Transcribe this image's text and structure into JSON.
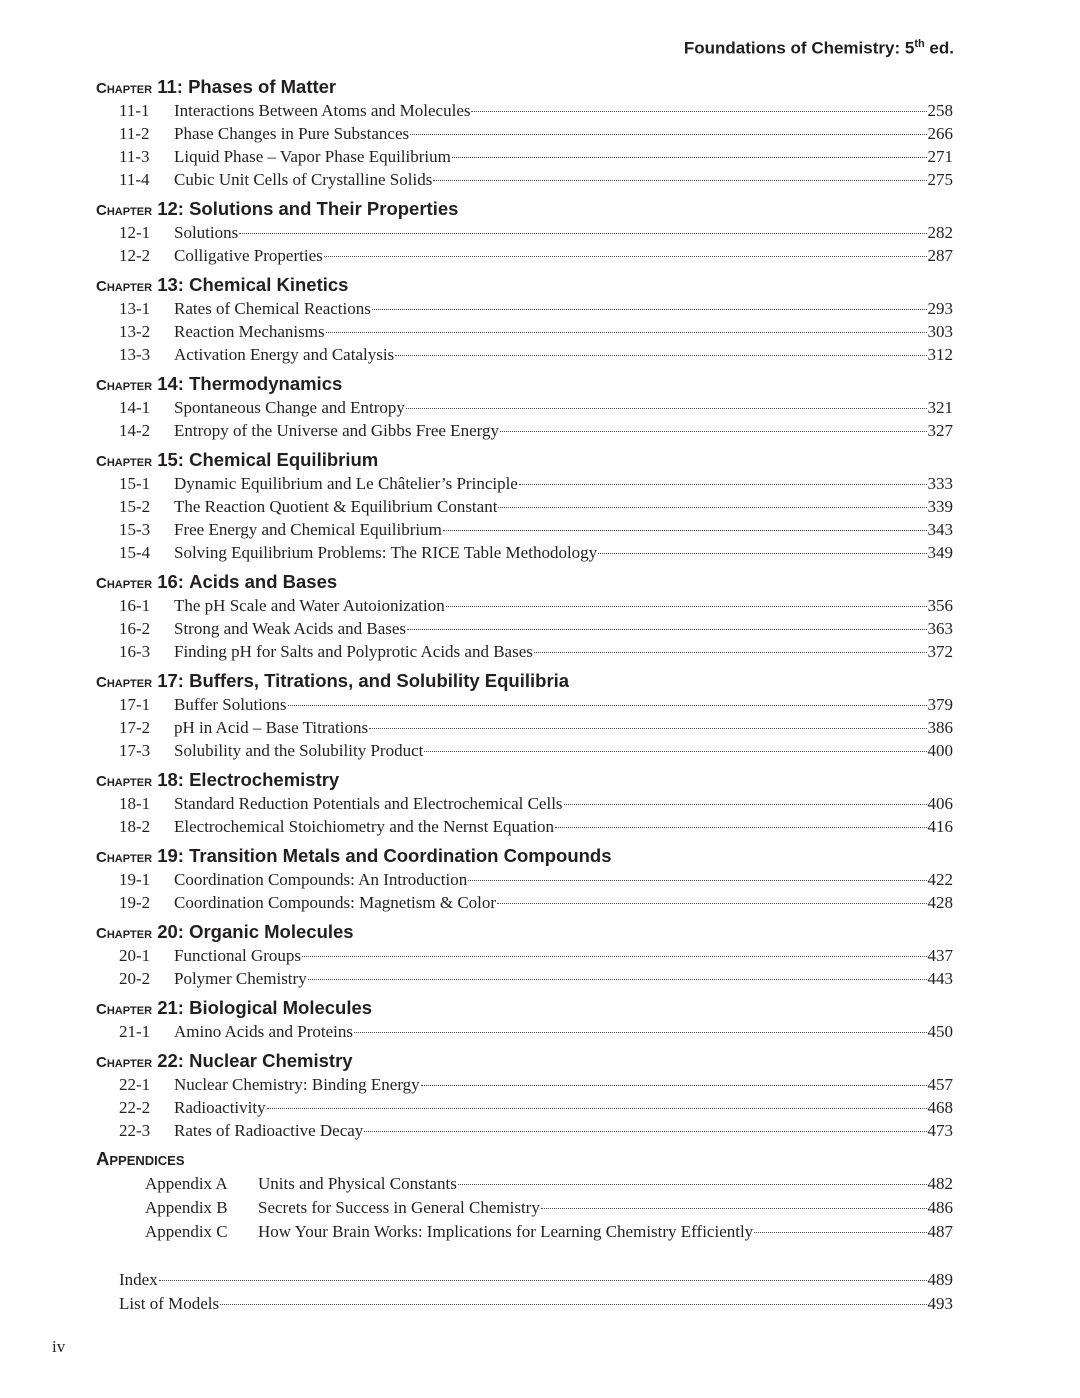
{
  "header": {
    "title_pre": "Foundations of Chemistry: 5",
    "title_sup": "th",
    "title_post": " ed."
  },
  "chapter_label": "Chapter",
  "chapters": [
    {
      "num": "11",
      "title": "Phases of Matter",
      "sections": [
        [
          "11-1",
          "Interactions Between Atoms and Molecules",
          "258"
        ],
        [
          "11-2",
          "Phase Changes in Pure Substances",
          "266"
        ],
        [
          "11-3",
          "Liquid Phase – Vapor Phase Equilibrium",
          "271"
        ],
        [
          "11-4",
          "Cubic Unit Cells of Crystalline Solids",
          "275"
        ]
      ]
    },
    {
      "num": "12",
      "title": "Solutions and Their Properties",
      "sections": [
        [
          "12-1",
          "Solutions",
          "282"
        ],
        [
          "12-2",
          "Colligative Properties",
          "287"
        ]
      ]
    },
    {
      "num": "13",
      "title": "Chemical Kinetics",
      "sections": [
        [
          "13-1",
          "Rates of Chemical Reactions",
          "293"
        ],
        [
          "13-2",
          "Reaction Mechanisms",
          "303"
        ],
        [
          "13-3",
          "Activation Energy and Catalysis",
          "312"
        ]
      ]
    },
    {
      "num": "14",
      "title": "Thermodynamics",
      "sections": [
        [
          "14-1",
          "Spontaneous Change and Entropy",
          "321"
        ],
        [
          "14-2",
          "Entropy of the Universe and Gibbs Free Energy",
          "327"
        ]
      ]
    },
    {
      "num": "15",
      "title": "Chemical Equilibrium",
      "sections": [
        [
          "15-1",
          "Dynamic Equilibrium and Le Châtelier’s Principle",
          "333"
        ],
        [
          "15-2",
          "The Reaction Quotient & Equilibrium Constant",
          "339"
        ],
        [
          "15-3",
          "Free Energy and Chemical Equilibrium",
          "343"
        ],
        [
          "15-4",
          "Solving Equilibrium Problems: The RICE Table Methodology",
          "349"
        ]
      ]
    },
    {
      "num": "16",
      "title": "Acids and Bases",
      "sections": [
        [
          "16-1",
          "The pH Scale and Water Autoionization",
          "356"
        ],
        [
          "16-2",
          "Strong and Weak Acids and  Bases",
          "363"
        ],
        [
          "16-3",
          "Finding pH for Salts and Polyprotic Acids and Bases",
          "372"
        ]
      ]
    },
    {
      "num": "17",
      "title": "Buffers, Titrations, and Solubility Equilibria",
      "sections": [
        [
          "17-1",
          "Buffer Solutions",
          "379"
        ],
        [
          "17-2",
          "pH in Acid – Base Titrations",
          "386"
        ],
        [
          "17-3",
          "Solubility and the Solubility Product",
          "400"
        ]
      ]
    },
    {
      "num": "18",
      "title": "Electrochemistry",
      "sections": [
        [
          "18-1",
          "Standard Reduction Potentials and Electrochemical Cells",
          "406"
        ],
        [
          "18-2",
          "Electrochemical Stoichiometry and the Nernst Equation",
          "416"
        ]
      ]
    },
    {
      "num": "19",
      "title": "Transition Metals and Coordination Compounds",
      "sections": [
        [
          "19-1",
          "Coordination Compounds: An Introduction",
          "422"
        ],
        [
          "19-2",
          "Coordination Compounds: Magnetism & Color",
          "428"
        ]
      ]
    },
    {
      "num": "20",
      "title": "Organic Molecules",
      "sections": [
        [
          "20-1",
          "Functional Groups",
          "437"
        ],
        [
          "20-2",
          "Polymer Chemistry",
          "443"
        ]
      ]
    },
    {
      "num": "21",
      "title": "Biological Molecules",
      "sections": [
        [
          "21-1",
          "Amino Acids and Proteins",
          "450"
        ]
      ]
    },
    {
      "num": "22",
      "title": "Nuclear Chemistry",
      "sections": [
        [
          "22-1",
          "Nuclear Chemistry: Binding Energy",
          "457"
        ],
        [
          "22-2",
          "Radioactivity",
          "468"
        ],
        [
          "22-3",
          "Rates of Radioactive Decay",
          "473"
        ]
      ]
    }
  ],
  "appendices": {
    "title": "Appendices",
    "items": [
      [
        "Appendix A",
        "Units and Physical Constants",
        "482"
      ],
      [
        "Appendix B",
        "Secrets for Success in General Chemistry",
        "486"
      ],
      [
        "Appendix C",
        "How Your Brain Works: Implications for Learning Chemistry Efficiently",
        "487"
      ]
    ]
  },
  "back_matter": [
    [
      "",
      "Index",
      "489"
    ],
    [
      "",
      "List of Models",
      "493"
    ]
  ],
  "folio": "iv"
}
